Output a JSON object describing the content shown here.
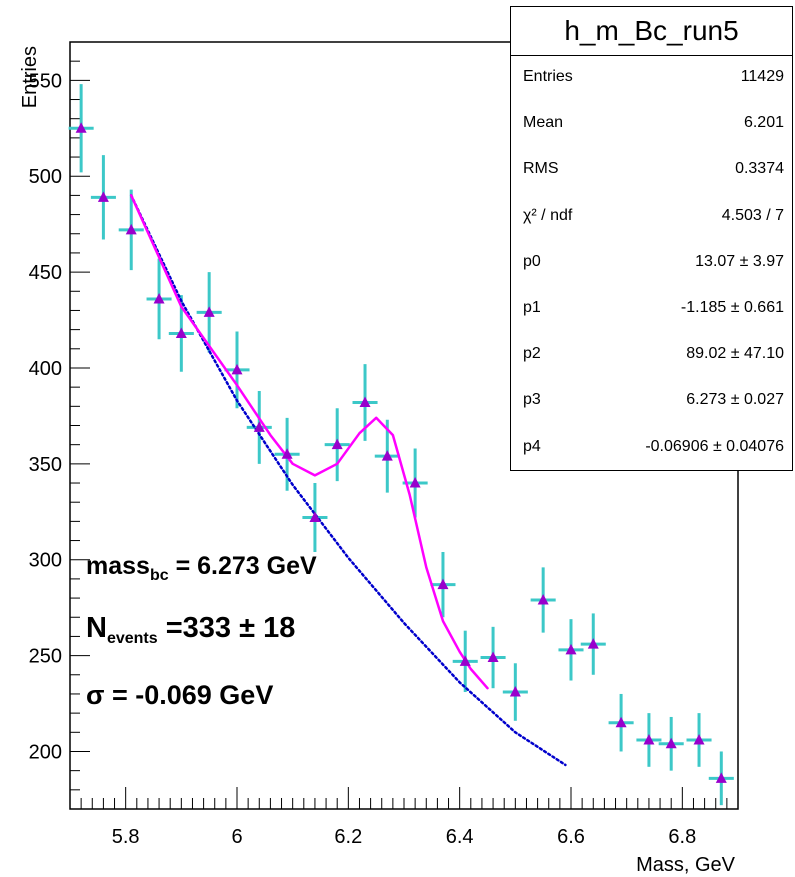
{
  "chart_data": {
    "type": "scatter",
    "title": "h_m_Bc_run5",
    "xlabel": "Mass, GeV",
    "ylabel": "Entries",
    "xlim": [
      5.7,
      6.9
    ],
    "ylim": [
      170,
      570
    ],
    "xticks": [
      5.8,
      6,
      6.2,
      6.4,
      6.6,
      6.8
    ],
    "xtick_labels": [
      "5.8",
      "6",
      "6.2",
      "6.4",
      "6.6",
      "6.8"
    ],
    "yticks": [
      200,
      250,
      300,
      350,
      400,
      450,
      500,
      550
    ],
    "ytick_labels": [
      "200",
      "250",
      "300",
      "350",
      "400",
      "450",
      "500",
      "550"
    ],
    "series": [
      {
        "style": "markers-with-errors",
        "x": [
          5.72,
          5.76,
          5.81,
          5.86,
          5.9,
          5.95,
          6.0,
          6.04,
          6.09,
          6.14,
          6.18,
          6.23,
          6.27,
          6.32,
          6.37,
          6.41,
          6.46,
          6.5,
          6.55,
          6.6,
          6.64,
          6.69,
          6.74,
          6.78,
          6.83,
          6.87
        ],
        "y": [
          525,
          489,
          472,
          436,
          418,
          429,
          399,
          369,
          355,
          322,
          360,
          382,
          354,
          340,
          287,
          247,
          249,
          231,
          279,
          253,
          256,
          215,
          206,
          204,
          206,
          186
        ],
        "yerr": [
          23,
          22,
          21,
          21,
          20,
          21,
          20,
          19,
          19,
          18,
          19,
          20,
          19,
          18,
          17,
          16,
          16,
          15,
          17,
          16,
          16,
          15,
          14,
          14,
          14,
          14
        ],
        "xerr": 0.0225,
        "marker_color": "#9900cc",
        "error_color": "#3cc8c8"
      },
      {
        "style": "fit-line",
        "x": [
          5.81,
          5.9,
          6.0,
          6.06,
          6.1,
          6.14,
          6.18,
          6.22,
          6.25,
          6.28,
          6.31,
          6.34,
          6.37,
          6.4,
          6.42,
          6.45
        ],
        "y": [
          490,
          432,
          391,
          365,
          350,
          344,
          350,
          366,
          374,
          365,
          334,
          296,
          268,
          252,
          243,
          233
        ],
        "color": "#ff00ff"
      },
      {
        "style": "background-line",
        "x": [
          5.81,
          5.9,
          6.0,
          6.1,
          6.2,
          6.3,
          6.4,
          6.5,
          6.59
        ],
        "y": [
          490,
          435,
          383,
          339,
          301,
          267,
          236,
          210,
          193
        ],
        "color": "#0000cc"
      }
    ]
  },
  "stats": {
    "title": "h_m_Bc_run5",
    "rows": [
      {
        "key": "Entries",
        "value": "11429"
      },
      {
        "key": "Mean",
        "value": "6.201"
      },
      {
        "key": "RMS",
        "value": "0.3374"
      },
      {
        "key": "χ² / ndf",
        "value": "4.503 / 7"
      },
      {
        "key": "p0",
        "value": "13.07 ± 3.97"
      },
      {
        "key": "p1",
        "value": "-1.185 ± 0.661"
      },
      {
        "key": "p2",
        "value": "89.02 ± 47.10"
      },
      {
        "key": "p3",
        "value": "6.273 ± 0.027"
      },
      {
        "key": "p4",
        "value": "-0.06906 ± 0.04076"
      }
    ]
  },
  "annotations": {
    "mass_main": "mass",
    "mass_sub": "bc",
    "mass_value": " = 6.273 GeV",
    "n_main": "N",
    "n_sub": "events",
    "n_value": " =333 ± 18",
    "sigma": "σ = -0.069 GeV"
  }
}
